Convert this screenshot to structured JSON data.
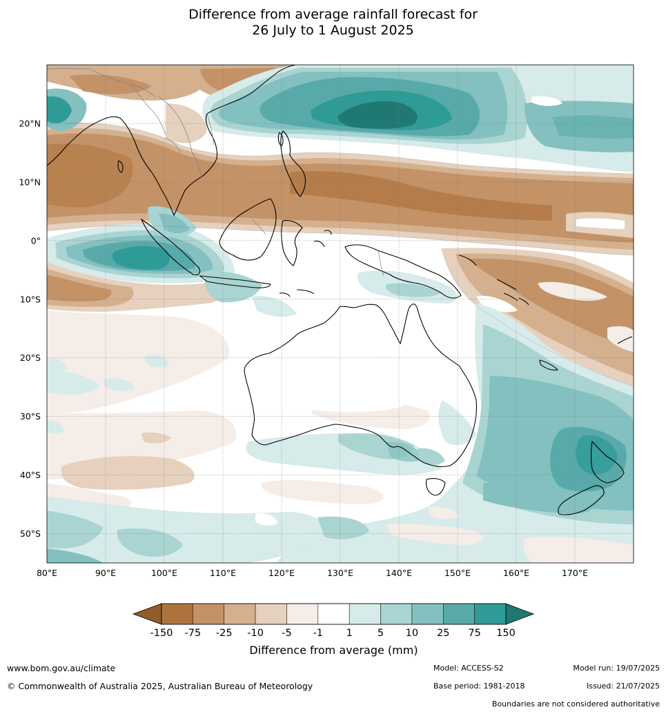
{
  "title": {
    "line1": "Difference from average rainfall forecast for",
    "line2": "26 July to 1 August 2025"
  },
  "map": {
    "lat_labels": [
      "20°N",
      "10°N",
      "0°",
      "10°S",
      "20°S",
      "30°S",
      "40°S",
      "50°S"
    ],
    "lat_values": [
      20,
      10,
      0,
      -10,
      -20,
      -30,
      -40,
      -50
    ],
    "lon_labels": [
      "80°E",
      "90°E",
      "100°E",
      "110°E",
      "120°E",
      "130°E",
      "140°E",
      "150°E",
      "160°E",
      "170°E"
    ],
    "lon_values": [
      80,
      90,
      100,
      110,
      120,
      130,
      140,
      150,
      160,
      170
    ],
    "extent": {
      "lon_min": 80,
      "lon_max": 180,
      "lat_min": -55,
      "lat_max": 30
    },
    "ocean_color": "#ffffff",
    "coastline_color": "#000000",
    "border_color": "#808080"
  },
  "colorbar": {
    "title": "Difference from average (mm)",
    "tick_labels": [
      "-150",
      "-75",
      "-25",
      "-10",
      "-5",
      "-1",
      "1",
      "5",
      "10",
      "25",
      "75",
      "150"
    ],
    "extend_low_color": "#925b2a",
    "extend_high_color": "#207872",
    "colors": [
      "#ad733e",
      "#c39266",
      "#d4b08e",
      "#e6d1be",
      "#f5ede8",
      "#ffffff",
      "#d6ebea",
      "#a9d4d2",
      "#83c0bf",
      "#58aaa9",
      "#2e9b97"
    ]
  },
  "footer": {
    "website": "www.bom.gov.au/climate",
    "copyright": "© Commonwealth of Australia 2025, Australian Bureau of Meteorology",
    "model": "Model: ACCESS-S2",
    "base_period": "Base period: 1981-2018",
    "model_run": "Model run: 19/07/2025",
    "issued": "Issued: 21/07/2025",
    "disclaimer": "Boundaries are not considered authoritative"
  }
}
